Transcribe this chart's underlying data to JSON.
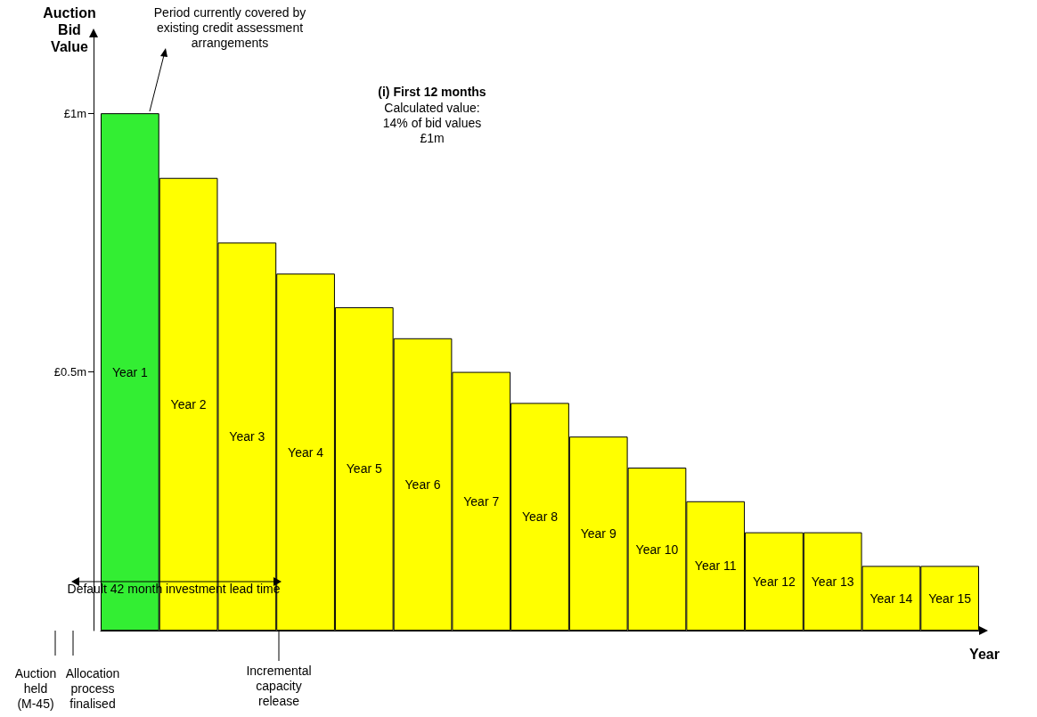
{
  "chart_data": {
    "type": "bar",
    "categories": [
      "Year 1",
      "Year 2",
      "Year 3",
      "Year 4",
      "Year 5",
      "Year 6",
      "Year 7",
      "Year 8",
      "Year 9",
      "Year 10",
      "Year 11",
      "Year 12",
      "Year 13",
      "Year 14",
      "Year 15"
    ],
    "values": [
      1.0,
      0.875,
      0.75,
      0.69,
      0.625,
      0.565,
      0.5,
      0.44,
      0.375,
      0.315,
      0.25,
      0.19,
      0.19,
      0.125,
      0.125
    ],
    "colors": [
      "#33ee33",
      "#ffff00",
      "#ffff00",
      "#ffff00",
      "#ffff00",
      "#ffff00",
      "#ffff00",
      "#ffff00",
      "#ffff00",
      "#ffff00",
      "#ffff00",
      "#ffff00",
      "#ffff00",
      "#ffff00",
      "#ffff00"
    ],
    "ylabel": "Auction Bid Value",
    "xlabel": "Year",
    "ylim": [
      0,
      1.15
    ],
    "yticks": [
      {
        "value": 0.5,
        "label": "£0.5m"
      },
      {
        "value": 1,
        "label": "£1m"
      }
    ],
    "grid": false,
    "annotations": [
      "Period currently covered by existing credit assessment arrangements",
      "(i) First 12 months",
      "Calculated value: 14% of bid values £1m",
      "Default 42 month investment lead time",
      "Auction held (M-45)",
      "Allocation process finalised",
      "Incremental capacity release"
    ]
  }
}
